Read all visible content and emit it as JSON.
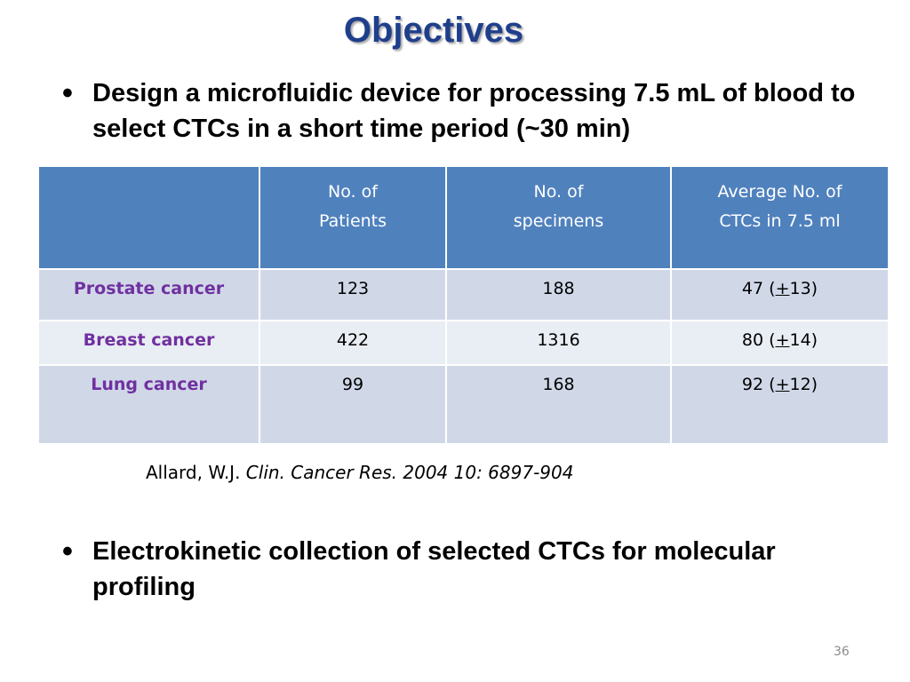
{
  "slide": {
    "title": "Objectives",
    "bullets": [
      "Design a microfluidic device for processing 7.5 mL of blood to  select CTCs in a short time period (~30 min)",
      "Electrokinetic collection of selected CTCs for molecular profiling"
    ],
    "bullet_glyph": "•",
    "page_number": "36"
  },
  "table": {
    "headers": [
      "",
      "No. of\nPatients",
      "No. of\nspecimens",
      "Average  No. of\nCTCs in 7.5 ml"
    ],
    "rows": [
      {
        "label": "Prostate cancer",
        "patients": "123",
        "specimens": "188",
        "avg_open": "47 (",
        "avg_pm": "+",
        "avg_close": "13)"
      },
      {
        "label": "Breast cancer",
        "patients": "422",
        "specimens": "1316",
        "avg_open": "80 (",
        "avg_pm": "+",
        "avg_close": "14)"
      },
      {
        "label": "Lung cancer",
        "patients": "99",
        "specimens": "168",
        "avg_open": "92 (",
        "avg_pm": "+",
        "avg_close": "12)"
      }
    ]
  },
  "citation": {
    "authors": "Allard, W.J.",
    "journal": " Clin. Cancer Res. 2004 10: 6897-904"
  },
  "colors": {
    "title": "#1f3f8c",
    "header_fill": "#4f81bd",
    "row_dark": "#d0d8e8",
    "row_light": "#e9edf4",
    "row_label": "#7030a0"
  }
}
